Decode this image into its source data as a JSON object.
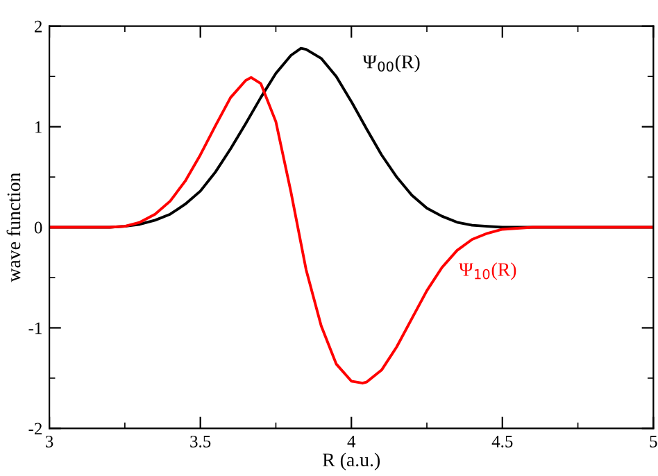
{
  "chart_data": {
    "type": "line",
    "xlabel": "R (a.u.)",
    "ylabel": "wave function",
    "xlim": [
      3,
      5
    ],
    "ylim": [
      -2,
      2
    ],
    "xticks": [
      3,
      3.5,
      4,
      4.5,
      5
    ],
    "yticks": [
      -2,
      -1,
      0,
      1,
      2
    ],
    "grid": false,
    "marker": "none",
    "line_style": "solid",
    "series": [
      {
        "color": "#000000",
        "x": [
          3,
          3.1,
          3.2,
          3.25,
          3.3,
          3.35,
          3.4,
          3.45,
          3.5,
          3.55,
          3.6,
          3.65,
          3.7,
          3.75,
          3.8,
          3.833,
          3.85,
          3.9,
          3.95,
          4.0,
          4.05,
          4.1,
          4.15,
          4.2,
          4.25,
          4.3,
          4.35,
          4.4,
          4.45,
          4.5,
          4.75,
          5
        ],
        "values": [
          0,
          0,
          0,
          0.01,
          0.03,
          0.07,
          0.13,
          0.23,
          0.36,
          0.55,
          0.78,
          1.03,
          1.29,
          1.53,
          1.71,
          1.78,
          1.77,
          1.68,
          1.5,
          1.25,
          0.98,
          0.72,
          0.5,
          0.32,
          0.19,
          0.11,
          0.05,
          0.02,
          0.01,
          0,
          0,
          0
        ]
      },
      {
        "color": "#ff0000",
        "x": [
          3,
          3.1,
          3.2,
          3.25,
          3.3,
          3.35,
          3.4,
          3.45,
          3.5,
          3.55,
          3.6,
          3.65,
          3.668,
          3.7,
          3.75,
          3.8,
          3.85,
          3.9,
          3.95,
          4.0,
          4.037,
          4.05,
          4.1,
          4.15,
          4.2,
          4.25,
          4.3,
          4.35,
          4.4,
          4.45,
          4.5,
          4.55,
          4.6,
          4.75,
          5
        ],
        "values": [
          0,
          0,
          0,
          0.01,
          0.05,
          0.13,
          0.26,
          0.46,
          0.72,
          1.01,
          1.29,
          1.46,
          1.49,
          1.43,
          1.05,
          0.35,
          -0.42,
          -0.98,
          -1.36,
          -1.53,
          -1.55,
          -1.54,
          -1.42,
          -1.19,
          -0.91,
          -0.63,
          -0.4,
          -0.23,
          -0.12,
          -0.06,
          -0.02,
          -0.01,
          0,
          0,
          0
        ]
      }
    ],
    "annotations": [
      "Ψ$_{00}$(R)",
      "Ψ$_{10}$(R)"
    ]
  }
}
